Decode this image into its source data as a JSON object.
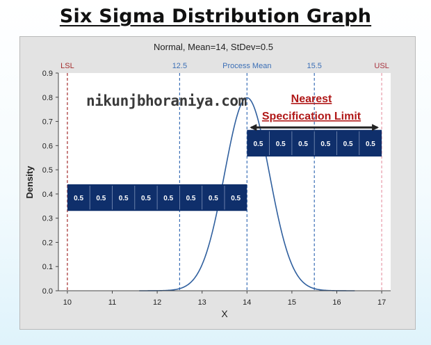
{
  "page_title": "Six Sigma Distribution Graph",
  "watermark": "nikunjbhoraniya.com",
  "callout": {
    "line1": "Nearest",
    "line2": "Specification Limit",
    "color": "#b01818"
  },
  "colors": {
    "curve": "#2f5f9e",
    "mean_line": "#3b6fb6",
    "lsl_line": "#a32c2c",
    "usl_line": "#e89aa8",
    "band_fill": "#0f2f6b",
    "band_text": "#ffffff",
    "arrow": "#222222"
  },
  "chart_data": {
    "type": "line",
    "title": "Normal, Mean=14, StDev=0.5",
    "xlabel": "X",
    "ylabel": "Density",
    "xlim": [
      9.8,
      17.2
    ],
    "ylim": [
      0,
      0.9
    ],
    "x_ticks": [
      10,
      11,
      12,
      13,
      14,
      15,
      16,
      17
    ],
    "y_ticks": [
      0.0,
      0.1,
      0.2,
      0.3,
      0.4,
      0.5,
      0.6,
      0.7,
      0.8,
      0.9
    ],
    "y_tick_labels": [
      "0.0",
      "0.1",
      "0.2",
      "0.3",
      "0.4",
      "0.5",
      "0.6",
      "0.7",
      "0.8",
      "0.9"
    ],
    "distribution": {
      "name": "Normal",
      "mean": 14,
      "stdev": 0.5,
      "x_range": [
        11.6,
        16.4
      ]
    },
    "reference_lines": [
      {
        "x": 10,
        "label": "LSL",
        "style": "lsl"
      },
      {
        "x": 12.5,
        "label": "12.5",
        "style": "mean"
      },
      {
        "x": 14,
        "label": "Process Mean",
        "style": "mean"
      },
      {
        "x": 15.5,
        "label": "15.5",
        "style": "mean"
      },
      {
        "x": 17,
        "label": "USL",
        "style": "usl"
      }
    ],
    "bands": [
      {
        "x_start": 10,
        "x_end": 14,
        "y_low": 0.33,
        "y_high": 0.44,
        "segment_labels": [
          "0.5",
          "0.5",
          "0.5",
          "0.5",
          "0.5",
          "0.5",
          "0.5",
          "0.5"
        ]
      },
      {
        "x_start": 14,
        "x_end": 17,
        "y_low": 0.555,
        "y_high": 0.665,
        "segment_labels": [
          "0.5",
          "0.5",
          "0.5",
          "0.5",
          "0.5",
          "0.5"
        ]
      }
    ],
    "arrow": {
      "x_start": 14,
      "x_end": 17,
      "y": 0.675
    },
    "grid": false,
    "legend": "none"
  }
}
